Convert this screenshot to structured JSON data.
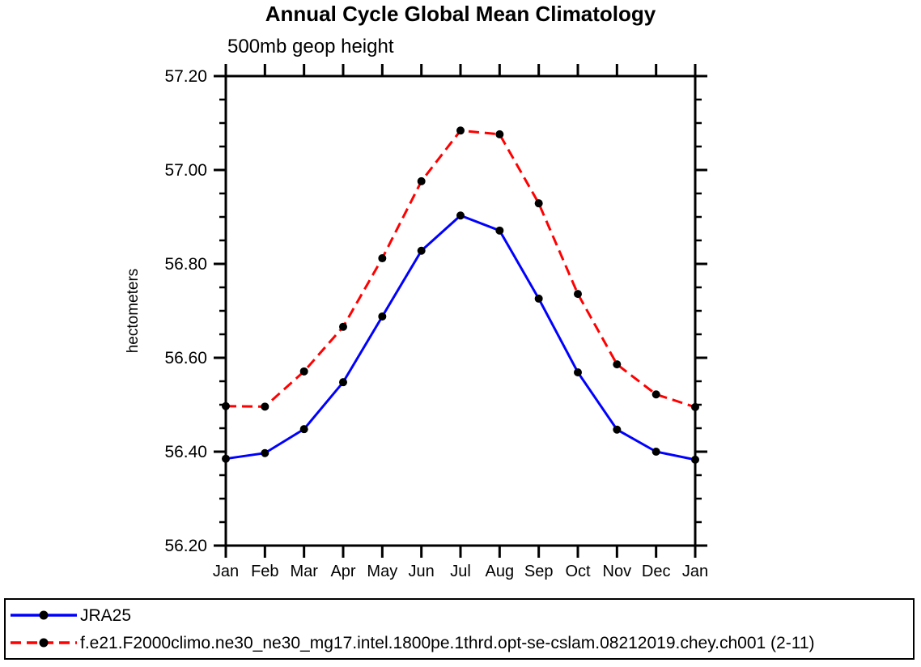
{
  "figure": {
    "background": "#ffffff",
    "axis_color": "#000000",
    "marker_color": "#000000"
  },
  "chart_data": {
    "type": "line",
    "title": "Annual Cycle Global Mean Climatology",
    "subtitle": "500mb geop height",
    "xlabel": "",
    "ylabel": "hectometers",
    "categories": [
      "Jan",
      "Feb",
      "Mar",
      "Apr",
      "May",
      "Jun",
      "Jul",
      "Aug",
      "Sep",
      "Oct",
      "Nov",
      "Dec",
      "Jan"
    ],
    "ylim": [
      56.2,
      57.2
    ],
    "y_major_ticks": [
      56.2,
      56.4,
      56.6,
      56.8,
      57.0,
      57.2
    ],
    "y_tick_labels": [
      "56.20",
      "56.40",
      "56.60",
      "56.80",
      "57.00",
      "57.20"
    ],
    "y_minor_step": 0.05,
    "grid": false,
    "legend_position": "bottom-outside-box",
    "series": [
      {
        "name": "JRA25",
        "color": "#0000ff",
        "line_style": "solid",
        "marker": "filled-circle",
        "marker_color": "#000000",
        "values": [
          56.385,
          56.397,
          56.448,
          56.548,
          56.688,
          56.828,
          56.903,
          56.871,
          56.726,
          56.569,
          56.447,
          56.4,
          56.383
        ]
      },
      {
        "name": "f.e21.F2000climo.ne30_ne30_mg17.intel.1800pe.1thrd.opt-se-cslam.08212019.chey.ch001 (2-11)",
        "color": "#ff0000",
        "line_style": "dashed",
        "marker": "filled-circle",
        "marker_color": "#000000",
        "values": [
          56.497,
          56.496,
          56.571,
          56.666,
          56.812,
          56.976,
          57.084,
          57.076,
          56.929,
          56.736,
          56.586,
          56.522,
          56.495
        ]
      }
    ]
  }
}
